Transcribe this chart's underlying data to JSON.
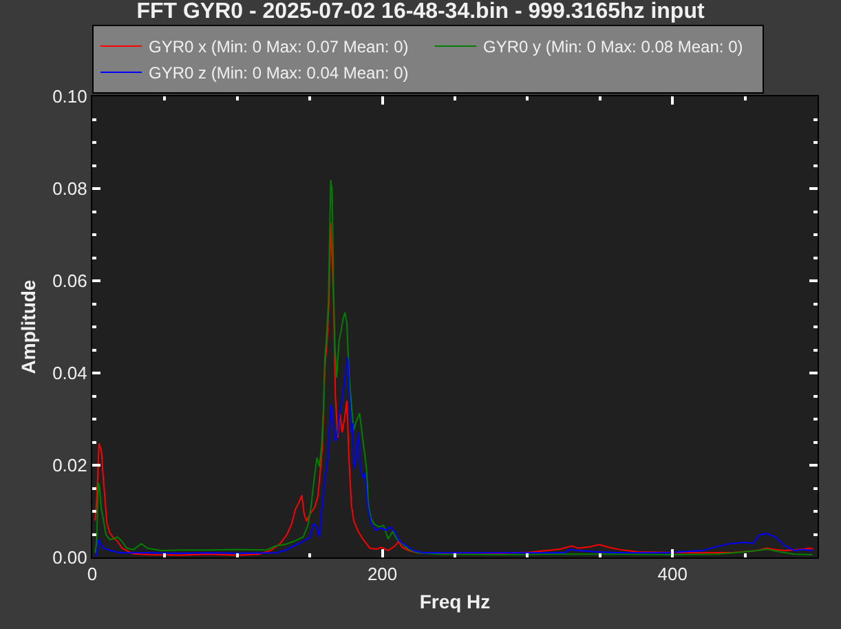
{
  "chart_data": {
    "type": "line",
    "title": "FFT GYR0 - 2025-07-02 16-48-34.bin - 999.3165hz input",
    "xlabel": "Freq Hz",
    "ylabel": "Amplitude",
    "xlim": [
      0,
      500
    ],
    "xticks": [
      0,
      {
        "value": 50,
        "label": null
      },
      {
        "value": 100,
        "label": null
      },
      {
        "value": 150,
        "label": null
      },
      200,
      {
        "value": 250,
        "label": null
      },
      {
        "value": 300,
        "label": null
      },
      {
        "value": 350,
        "label": null
      },
      400,
      {
        "value": 450,
        "label": null
      }
    ],
    "ylim": [
      0,
      0.1
    ],
    "yticks": [
      {
        "value": 0,
        "label": "0.00"
      },
      {
        "value": 0.005,
        "label": null
      },
      {
        "value": 0.01,
        "label": null
      },
      {
        "value": 0.015,
        "label": null
      },
      {
        "value": 0.02,
        "label": "0.02"
      },
      {
        "value": 0.025,
        "label": null
      },
      {
        "value": 0.03,
        "label": null
      },
      {
        "value": 0.035,
        "label": null
      },
      {
        "value": 0.04,
        "label": "0.04"
      },
      {
        "value": 0.045,
        "label": null
      },
      {
        "value": 0.05,
        "label": null
      },
      {
        "value": 0.055,
        "label": null
      },
      {
        "value": 0.06,
        "label": "0.06"
      },
      {
        "value": 0.065,
        "label": null
      },
      {
        "value": 0.07,
        "label": null
      },
      {
        "value": 0.075,
        "label": null
      },
      {
        "value": 0.08,
        "label": "0.08"
      },
      {
        "value": 0.085,
        "label": null
      },
      {
        "value": 0.09,
        "label": null
      },
      {
        "value": 0.095,
        "label": null
      },
      {
        "value": 0.1,
        "label": "0.10"
      }
    ],
    "grid": false,
    "legend": "top",
    "marker": "none",
    "line_style": "solid",
    "series": [
      {
        "name": "GYR0 x (Min: 0 Max: 0.07 Mean: 0)",
        "color": "#ff0000",
        "x": [
          2.0,
          3.1,
          4.7,
          6.3,
          7.6,
          8.8,
          10.1,
          12.0,
          14.2,
          17.4,
          20.5,
          23.7,
          28,
          40,
          60,
          80,
          100,
          115,
          123,
          129.6,
          134.3,
          137.6,
          140,
          142.3,
          144.5,
          146.1,
          147.7,
          150.2,
          153.4,
          155.6,
          156.5,
          158.7,
          160.3,
          161.9,
          163.2,
          164.4,
          165.4,
          166.6,
          167.6,
          169.2,
          170.8,
          172.3,
          173.9,
          175.5,
          177.0,
          178.7,
          180.3,
          183.4,
          186.5,
          189,
          191.3,
          196,
          199.2,
          204,
          208.7,
          211.2,
          213.5,
          218.2,
          224.5,
          240,
          260,
          280,
          300.4,
          313,
          322.6,
          330.5,
          335.2,
          343.1,
          349.4,
          355.8,
          363.7,
          376.3,
          395.3,
          414.2,
          426.9,
          442.7,
          458.5,
          464.8,
          471.2,
          477.5,
          487,
          494.9,
          497
        ],
        "values": [
          0.008,
          0.0123,
          0.0247,
          0.0232,
          0.0173,
          0.0128,
          0.0074,
          0.0054,
          0.0044,
          0.0035,
          0.002,
          0.0015,
          0.0008,
          0.0006,
          0.0005,
          0.0007,
          0.0005,
          0.0007,
          0.0015,
          0.003,
          0.005,
          0.0074,
          0.0104,
          0.0118,
          0.0135,
          0.0094,
          0.0079,
          0.0094,
          0.0109,
          0.0133,
          0.0163,
          0.0242,
          0.041,
          0.0469,
          0.0553,
          0.0726,
          0.0646,
          0.0528,
          0.035,
          0.026,
          0.0311,
          0.0271,
          0.0301,
          0.034,
          0.0212,
          0.0113,
          0.0079,
          0.0056,
          0.004,
          0.003,
          0.002,
          0.0018,
          0.0022,
          0.0015,
          0.0025,
          0.0035,
          0.0022,
          0.0015,
          0.001,
          0.0009,
          0.001,
          0.0009,
          0.0011,
          0.0015,
          0.0018,
          0.0025,
          0.002,
          0.0023,
          0.0028,
          0.0022,
          0.0017,
          0.0012,
          0.0011,
          0.001,
          0.001,
          0.0011,
          0.0015,
          0.002,
          0.0017,
          0.0015,
          0.0017,
          0.002,
          0.0018
        ]
      },
      {
        "name": "GYR0 y (Min: 0 Max: 0.08 Mean: 0)",
        "color": "#008000",
        "x": [
          2.0,
          3.1,
          4.1,
          5.0,
          6.3,
          7.6,
          9.5,
          12.0,
          14.2,
          17.4,
          20.5,
          23.7,
          28.5,
          33.8,
          38,
          47.4,
          60,
          80,
          100,
          120,
          126.5,
          132.8,
          139.1,
          145.4,
          148.6,
          150.8,
          152.7,
          154.9,
          156.5,
          158.1,
          159.4,
          160.3,
          161.3,
          162.8,
          164.4,
          165.4,
          166.3,
          167.3,
          168.5,
          170.1,
          171.4,
          173,
          174.2,
          175.5,
          177.1,
          178.7,
          180.2,
          181.8,
          184.3,
          185.9,
          187.5,
          189.1,
          190.3,
          192.2,
          194.5,
          197.6,
          200.8,
          204,
          207.1,
          210.2,
          213.5,
          218.2,
          224.5,
          240,
          280,
          320,
          360,
          400,
          430,
          442.7,
          458.5,
          464.8,
          474.4,
          483.9,
          496.5
        ],
        "values": [
          0.001,
          0.0035,
          0.0163,
          0.0153,
          0.0104,
          0.0084,
          0.0049,
          0.0039,
          0.004,
          0.0044,
          0.0035,
          0.002,
          0.0017,
          0.003,
          0.002,
          0.0015,
          0.0016,
          0.0016,
          0.0017,
          0.0016,
          0.0025,
          0.0028,
          0.0035,
          0.0044,
          0.0069,
          0.0109,
          0.0163,
          0.0217,
          0.0197,
          0.0242,
          0.0321,
          0.0429,
          0.0469,
          0.0553,
          0.0819,
          0.0795,
          0.0587,
          0.0459,
          0.039,
          0.0469,
          0.0489,
          0.0518,
          0.0531,
          0.0508,
          0.039,
          0.0331,
          0.0276,
          0.0293,
          0.0313,
          0.0271,
          0.0232,
          0.0192,
          0.0113,
          0.0084,
          0.0072,
          0.0066,
          0.0069,
          0.004,
          0.0056,
          0.0039,
          0.003,
          0.0017,
          0.001,
          0.0007,
          0.0006,
          0.0007,
          0.0007,
          0.0006,
          0.0007,
          0.001,
          0.0015,
          0.0018,
          0.0012,
          0.0007,
          0.0006
        ]
      },
      {
        "name": "GYR0 z (Min: 0 Max: 0.04 Mean: 0)",
        "color": "#0000ff",
        "x": [
          2.0,
          3.1,
          4.4,
          5.7,
          7.9,
          12.6,
          19,
          40,
          60,
          80,
          100,
          126.5,
          132.8,
          139.1,
          145.4,
          150.2,
          152.7,
          154.9,
          156.8,
          158.7,
          160.6,
          162.2,
          163.8,
          164.7,
          166,
          167.6,
          169.2,
          170.8,
          172.7,
          174.2,
          176.1,
          177.3,
          178.7,
          179.6,
          180.3,
          181.8,
          183.4,
          185,
          186.5,
          188.1,
          189.7,
          192.2,
          195.4,
          199.2,
          202.4,
          205.5,
          208.7,
          211.9,
          216.6,
          221.3,
          227.7,
          260,
          300,
          325.8,
          328.9,
          335.2,
          347.8,
          363.7,
          395.3,
          420.6,
          430,
          439.5,
          449,
          455.3,
          460,
          464.8,
          471.1,
          477.5,
          483.9,
          490.1,
          496.5
        ],
        "values": [
          0.0003,
          0.0005,
          0.0039,
          0.003,
          0.002,
          0.0015,
          0.001,
          0.001,
          0.0009,
          0.001,
          0.0009,
          0.001,
          0.0015,
          0.0025,
          0.0035,
          0.0044,
          0.0074,
          0.0064,
          0.0044,
          0.0123,
          0.0173,
          0.0212,
          0.0281,
          0.0331,
          0.0291,
          0.0252,
          0.0271,
          0.0321,
          0.035,
          0.039,
          0.0434,
          0.035,
          0.0271,
          0.0291,
          0.0192,
          0.0212,
          0.0271,
          0.0192,
          0.0173,
          0.0183,
          0.0113,
          0.0074,
          0.0059,
          0.0064,
          0.0059,
          0.0066,
          0.0054,
          0.0035,
          0.0025,
          0.0015,
          0.001,
          0.001,
          0.001,
          0.001,
          0.0017,
          0.0015,
          0.0012,
          0.001,
          0.001,
          0.0015,
          0.0023,
          0.003,
          0.0033,
          0.003,
          0.0049,
          0.0052,
          0.0044,
          0.0025,
          0.0015,
          0.0017,
          0.0015
        ]
      }
    ]
  }
}
